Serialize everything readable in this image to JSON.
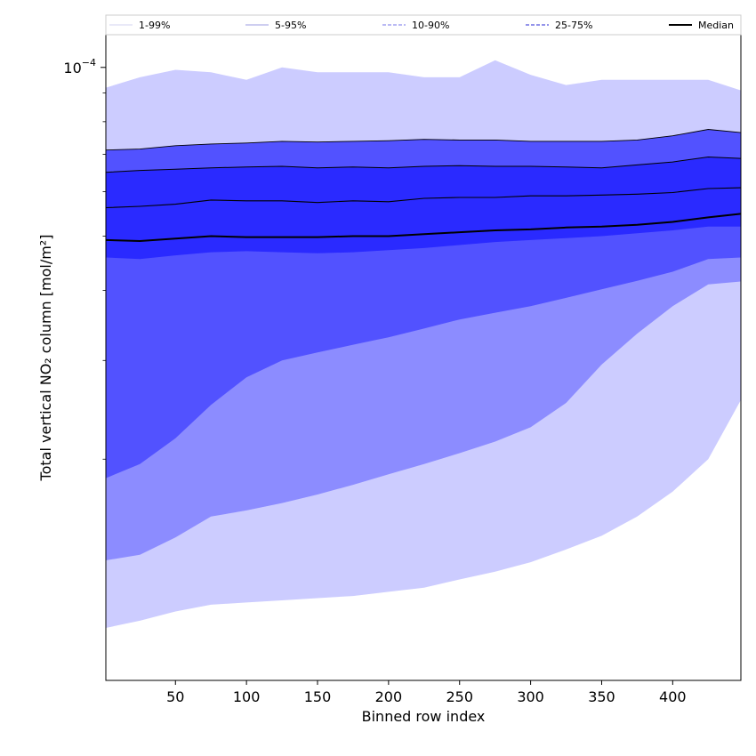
{
  "chart_data": {
    "type": "area",
    "title": "",
    "xlabel": "Binned row index",
    "ylabel": "Total vertical NO₂ column [mol/m²]",
    "y_scale": "log",
    "xlim": [
      1,
      448
    ],
    "ylim": [
      8.06e-06,
      0.0001148
    ],
    "x_tick_values": [
      50,
      100,
      150,
      200,
      250,
      300,
      350,
      400
    ],
    "x_tick_labels": [
      "50",
      "100",
      "150",
      "200",
      "250",
      "300",
      "350",
      "400"
    ],
    "y_tick_major": {
      "value": 0.0001,
      "mantissa": "10",
      "exponent": "−4"
    },
    "y_tick_minor": [
      2e-05,
      3e-05,
      4e-05,
      5e-05,
      6e-05,
      7e-05,
      8e-05,
      9e-05
    ],
    "grid": false,
    "legend_position": "top",
    "legend": [
      {
        "label": "1-99%",
        "color": "#dcdcf4",
        "dash": "solid"
      },
      {
        "label": "5-95%",
        "color": "#b0b0e8",
        "dash": "solid"
      },
      {
        "label": "10-90%",
        "color": "#9090ee",
        "dash": "dashed"
      },
      {
        "label": "25-75%",
        "color": "#5555dd",
        "dash": "dashed"
      },
      {
        "label": "Median",
        "color": "#000000",
        "dash": "solid"
      }
    ],
    "x": [
      1,
      25,
      50,
      75,
      100,
      125,
      150,
      175,
      200,
      225,
      250,
      275,
      300,
      325,
      350,
      375,
      400,
      425,
      448
    ],
    "bands": [
      {
        "name": "1-99%",
        "fill": "#ccccff",
        "lower": [
          1e-05,
          1.03e-05,
          1.07e-05,
          1.1e-05,
          1.11e-05,
          1.12e-05,
          1.13e-05,
          1.14e-05,
          1.16e-05,
          1.18e-05,
          1.22e-05,
          1.26e-05,
          1.31e-05,
          1.38e-05,
          1.46e-05,
          1.58e-05,
          1.75e-05,
          2e-05,
          2.55e-05
        ],
        "upper": [
          9.2e-05,
          9.6e-05,
          9.9e-05,
          9.8e-05,
          9.5e-05,
          0.0001,
          9.8e-05,
          9.8e-05,
          9.8e-05,
          9.6e-05,
          9.6e-05,
          0.000103,
          9.7e-05,
          9.3e-05,
          9.5e-05,
          9.5e-05,
          9.5e-05,
          9.5e-05,
          9.1e-05
        ]
      },
      {
        "name": "5-95%",
        "fill": "#8c8cff",
        "lower": [
          1.32e-05,
          1.35e-05,
          1.45e-05,
          1.58e-05,
          1.62e-05,
          1.67e-05,
          1.73e-05,
          1.8e-05,
          1.88e-05,
          1.96e-05,
          2.05e-05,
          2.15e-05,
          2.28e-05,
          2.52e-05,
          2.95e-05,
          3.35e-05,
          3.75e-05,
          4.1e-05,
          4.15e-05
        ]
      },
      {
        "name": "10-90%",
        "fill": "#5252ff",
        "lower": [
          1.85e-05,
          1.96e-05,
          2.18e-05,
          2.5e-05,
          2.8e-05,
          3e-05,
          3.1e-05,
          3.2e-05,
          3.3e-05,
          3.42e-05,
          3.55e-05,
          3.65e-05,
          3.75e-05,
          3.88e-05,
          4.02e-05,
          4.16e-05,
          4.32e-05,
          4.55e-05,
          4.58e-05
        ],
        "upper": [
          7.12e-05,
          7.15e-05,
          7.25e-05,
          7.3e-05,
          7.33e-05,
          7.38e-05,
          7.36e-05,
          7.38e-05,
          7.4e-05,
          7.44e-05,
          7.42e-05,
          7.42e-05,
          7.38e-05,
          7.38e-05,
          7.38e-05,
          7.42e-05,
          7.55e-05,
          7.75e-05,
          7.65e-05
        ]
      },
      {
        "name": "25-75%",
        "fill": "#2a2aff",
        "lower": [
          4.58e-05,
          4.55e-05,
          4.62e-05,
          4.68e-05,
          4.7e-05,
          4.68e-05,
          4.66e-05,
          4.68e-05,
          4.72e-05,
          4.76e-05,
          4.82e-05,
          4.88e-05,
          4.92e-05,
          4.96e-05,
          5e-05,
          5.06e-05,
          5.12e-05,
          5.2e-05,
          5.2e-05
        ],
        "upper": [
          6.5e-05,
          6.55e-05,
          6.58e-05,
          6.62e-05,
          6.64e-05,
          6.66e-05,
          6.62e-05,
          6.64e-05,
          6.62e-05,
          6.66e-05,
          6.68e-05,
          6.66e-05,
          6.66e-05,
          6.64e-05,
          6.62e-05,
          6.7e-05,
          6.78e-05,
          6.92e-05,
          6.88e-05
        ]
      }
    ],
    "lines": [
      {
        "name": "90%",
        "values": [
          7.12e-05,
          7.15e-05,
          7.25e-05,
          7.3e-05,
          7.33e-05,
          7.38e-05,
          7.36e-05,
          7.38e-05,
          7.4e-05,
          7.44e-05,
          7.42e-05,
          7.42e-05,
          7.38e-05,
          7.38e-05,
          7.38e-05,
          7.42e-05,
          7.55e-05,
          7.75e-05,
          7.65e-05
        ],
        "width": 0.9
      },
      {
        "name": "75%",
        "values": [
          6.5e-05,
          6.55e-05,
          6.58e-05,
          6.62e-05,
          6.64e-05,
          6.66e-05,
          6.62e-05,
          6.64e-05,
          6.62e-05,
          6.66e-05,
          6.68e-05,
          6.66e-05,
          6.66e-05,
          6.64e-05,
          6.62e-05,
          6.7e-05,
          6.78e-05,
          6.92e-05,
          6.88e-05
        ],
        "width": 1.0
      },
      {
        "name": "95%",
        "values": [
          5.62e-05,
          5.65e-05,
          5.7e-05,
          5.8e-05,
          5.78e-05,
          5.78e-05,
          5.74e-05,
          5.78e-05,
          5.76e-05,
          5.84e-05,
          5.86e-05,
          5.86e-05,
          5.9e-05,
          5.9e-05,
          5.92e-05,
          5.94e-05,
          5.98e-05,
          6.08e-05,
          6.1e-05
        ],
        "width": 1.1
      },
      {
        "name": "Median",
        "values": [
          4.92e-05,
          4.9e-05,
          4.95e-05,
          5e-05,
          4.98e-05,
          4.98e-05,
          4.98e-05,
          5e-05,
          5e-05,
          5.04e-05,
          5.08e-05,
          5.12e-05,
          5.14e-05,
          5.18e-05,
          5.2e-05,
          5.24e-05,
          5.3e-05,
          5.4e-05,
          5.48e-05
        ],
        "width": 2.0
      }
    ]
  }
}
